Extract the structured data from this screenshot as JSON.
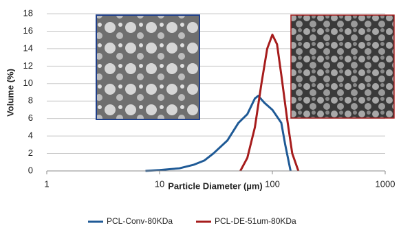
{
  "chart_data": {
    "type": "line",
    "x_label": "Particle  Diameter (µm)",
    "y_label": "Volume (%)",
    "log_x": true,
    "grid": true,
    "legend_position": "bottom",
    "xlim": [
      1,
      1000
    ],
    "xticks": [
      1,
      10,
      100,
      1000
    ],
    "ylim": [
      0,
      18
    ],
    "yticks": [
      0,
      2,
      4,
      6,
      8,
      10,
      12,
      14,
      16,
      18
    ],
    "series": [
      {
        "name": "PCL-Conv-80KDa",
        "color": "#1f5a96",
        "x": [
          7.5,
          10,
          15,
          20,
          25,
          30,
          40,
          50,
          60,
          70,
          75,
          85,
          100,
          120,
          130,
          145
        ],
        "values": [
          0,
          0.1,
          0.3,
          0.7,
          1.2,
          2,
          3.5,
          5.5,
          6.5,
          8.3,
          8.6,
          7.8,
          7,
          5.5,
          3,
          0
        ]
      },
      {
        "name": "PCL-DE-51um-80KDa",
        "color": "#a61c1c",
        "x": [
          52,
          60,
          70,
          80,
          90,
          100,
          110,
          120,
          135,
          150,
          170
        ],
        "values": [
          0,
          1.5,
          5,
          10,
          14,
          15.6,
          14.5,
          11,
          6,
          2,
          0
        ]
      }
    ]
  }
}
